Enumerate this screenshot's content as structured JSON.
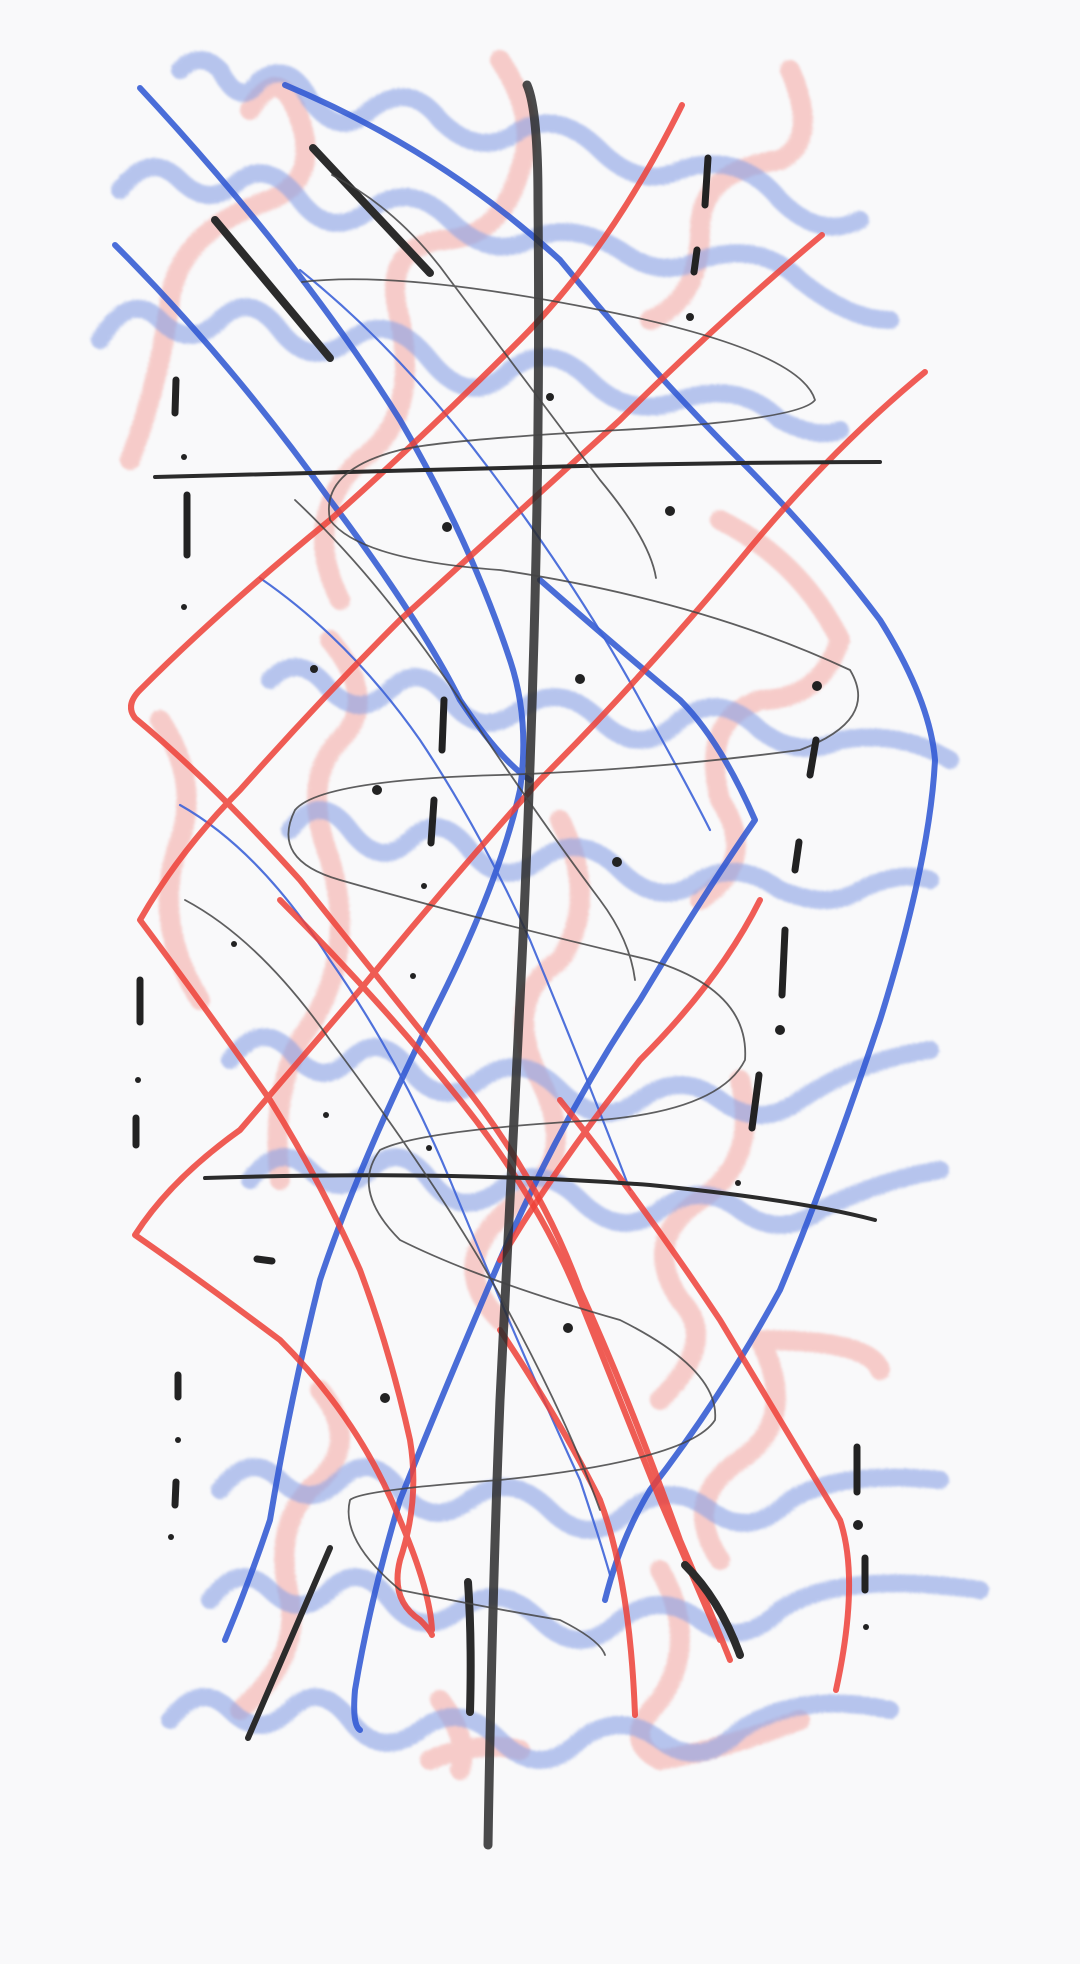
{
  "canvas": {
    "background": "#f9f9fa",
    "brush_colors": {
      "red": "#ee4138",
      "red_soft": "#f28b85",
      "blue": "#1f49c9",
      "blue_soft": "#5b7fe0",
      "black": "#2b2b2b",
      "gray": "#555555"
    }
  }
}
